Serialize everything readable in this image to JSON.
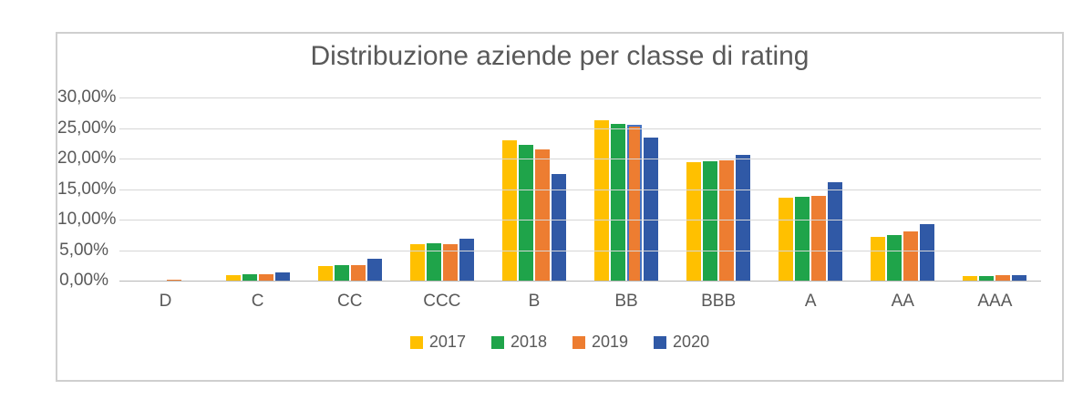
{
  "chart_data": {
    "type": "bar",
    "title": "Distribuzione aziende per classe di rating",
    "categories": [
      "D",
      "C",
      "CC",
      "CCC",
      "B",
      "BB",
      "BBB",
      "A",
      "AA",
      "AAA"
    ],
    "series": [
      {
        "name": "2017",
        "color": "#FFC000",
        "values": [
          0.05,
          0.9,
          2.4,
          6.0,
          23.0,
          26.2,
          19.4,
          13.6,
          7.1,
          0.7
        ]
      },
      {
        "name": "2018",
        "color": "#1FA44A",
        "values": [
          0.05,
          1.0,
          2.5,
          6.1,
          22.2,
          25.7,
          19.6,
          13.7,
          7.5,
          0.8
        ]
      },
      {
        "name": "2019",
        "color": "#ED7D31",
        "values": [
          0.1,
          1.0,
          2.6,
          6.0,
          21.5,
          25.5,
          19.7,
          13.9,
          8.1,
          0.9
        ]
      },
      {
        "name": "2020",
        "color": "#3059A6",
        "values": [
          0.05,
          1.4,
          3.6,
          6.9,
          17.5,
          23.4,
          20.6,
          16.1,
          9.2,
          0.9
        ]
      }
    ],
    "y_ticks": [
      {
        "value": 30,
        "label": "30,00%"
      },
      {
        "value": 25,
        "label": "25,00%"
      },
      {
        "value": 20,
        "label": "20,00%"
      },
      {
        "value": 15,
        "label": "15,00%"
      },
      {
        "value": 10,
        "label": "10,00%"
      },
      {
        "value": 5,
        "label": "5,00%"
      },
      {
        "value": 0,
        "label": "0,00%"
      }
    ],
    "ylim": [
      0,
      30
    ],
    "grid": true,
    "legend_position": "bottom",
    "value_format": "percent-italian-comma",
    "highlight": {
      "series": "2019",
      "category": "BB",
      "border_color": "#4573C2"
    }
  },
  "colors": {
    "text": "#595959",
    "gridline": "#d6d6d6",
    "axis_line": "#b7b7b7",
    "frame_border": "#cfcfcf",
    "background": "#ffffff"
  }
}
